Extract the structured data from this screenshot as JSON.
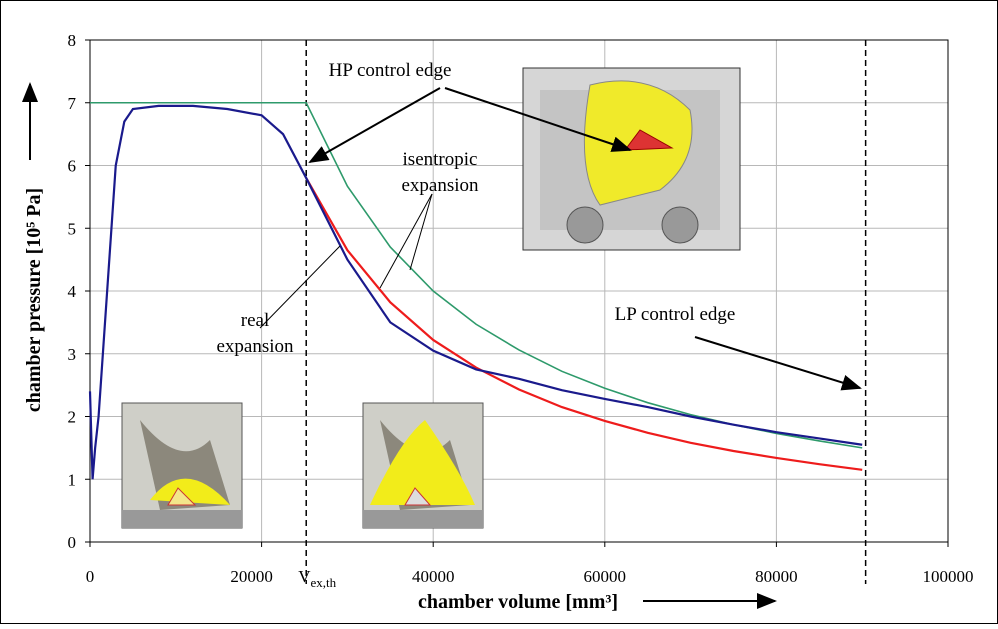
{
  "chart_data": {
    "type": "line",
    "xlabel": "chamber volume [mm³]",
    "ylabel": "chamber pressure [10⁵ Pa]",
    "xlim": [
      0,
      100000
    ],
    "ylim": [
      0,
      8
    ],
    "xticks": [
      0,
      20000,
      40000,
      60000,
      80000,
      100000
    ],
    "yticks": [
      0,
      1,
      2,
      3,
      4,
      5,
      6,
      7,
      8
    ],
    "grid": true,
    "vlines": [
      25200,
      90400
    ],
    "vline_label": "V",
    "vline_label_sub": "ex,th",
    "annotations": [
      {
        "lines": [
          "HP control edge"
        ]
      },
      {
        "lines": [
          "isentropic",
          "expansion"
        ]
      },
      {
        "lines": [
          "real",
          "expansion"
        ]
      },
      {
        "lines": [
          "LP control edge"
        ]
      }
    ],
    "series": [
      {
        "color": "#2e9a6b",
        "x": [
          0,
          25200,
          30000,
          35000,
          40000,
          45000,
          50000,
          55000,
          60000,
          65000,
          70000,
          75000,
          80000,
          85000,
          90000
        ],
        "values": [
          7,
          7,
          5.67,
          4.7,
          4.0,
          3.47,
          3.06,
          2.72,
          2.45,
          2.22,
          2.03,
          1.87,
          1.73,
          1.61,
          1.5
        ]
      },
      {
        "color": "#ee1c1c",
        "x": [
          25200,
          30000,
          35000,
          40000,
          45000,
          50000,
          55000,
          60000,
          65000,
          70000,
          75000,
          80000,
          85000,
          90000
        ],
        "values": [
          5.8,
          4.65,
          3.82,
          3.22,
          2.78,
          2.43,
          2.15,
          1.93,
          1.74,
          1.58,
          1.45,
          1.34,
          1.24,
          1.15
        ]
      },
      {
        "color": "#1a1a8c",
        "x": [
          0,
          300,
          600,
          1000,
          2000,
          3000,
          4000,
          5000,
          8000,
          12000,
          16000,
          20000,
          22500,
          25200,
          30000,
          35000,
          40000,
          45000,
          50000,
          55000,
          60000,
          65000,
          70000,
          75000,
          80000,
          85000,
          90000
        ],
        "values": [
          2.4,
          1.0,
          1.5,
          2.0,
          4.0,
          6.0,
          6.7,
          6.9,
          6.95,
          6.95,
          6.9,
          6.8,
          6.5,
          5.8,
          4.5,
          3.5,
          3.05,
          2.75,
          2.6,
          2.42,
          2.28,
          2.15,
          2.0,
          1.87,
          1.75,
          1.65,
          1.55
        ]
      }
    ]
  }
}
